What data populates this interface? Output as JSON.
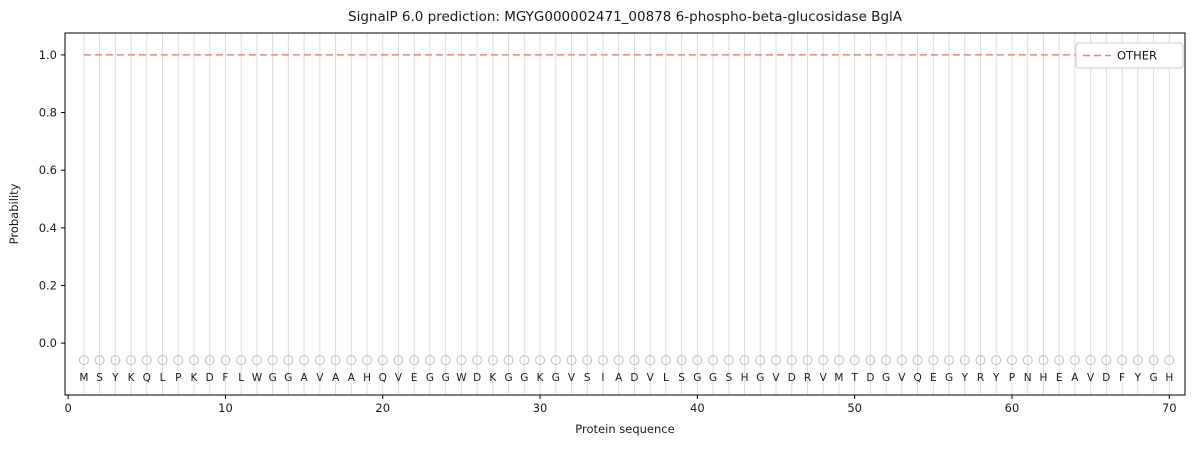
{
  "title": "SignalP 6.0 prediction: MGYG000002471_00878 6-phospho-beta-glucosidase BglA",
  "chart_data": {
    "type": "line",
    "title": "SignalP 6.0 prediction: MGYG000002471_00878 6-phospho-beta-glucosidase BglA",
    "xlabel": "Protein sequence",
    "ylabel": "Probability",
    "xlim": [
      -0.2,
      71.0
    ],
    "ylim": [
      -0.18,
      1.076
    ],
    "x_ticks": [
      0,
      10,
      20,
      30,
      40,
      50,
      60,
      70
    ],
    "y_ticks": [
      0.0,
      0.2,
      0.4,
      0.6,
      0.8,
      1.0
    ],
    "grid": true,
    "legend_position": "upper right",
    "legend_entries": [
      "OTHER"
    ],
    "sequence": "MSYKQLPKDFLWGGAVAAHQVEGGWDKGGKGVSIADVLSGGSHGVDRVMTDGVQEGYRYPNHEAVDFYGH",
    "series": [
      {
        "name": "OTHER",
        "style": "dashed",
        "color": "#f08080",
        "x_start": 1,
        "x_end": 70,
        "value": 1.0
      }
    ],
    "markers": {
      "shape": "circle-open",
      "y_value": -0.059,
      "color": "#bdbdbd"
    },
    "colors": {
      "other_line": "#f08080",
      "gridline": "#dcdcdc",
      "marker_stroke": "#bdbdbd",
      "letter": "#2f2f2f",
      "spine": "#000000",
      "legend_border": "#cccccc",
      "background": "#ffffff"
    }
  }
}
